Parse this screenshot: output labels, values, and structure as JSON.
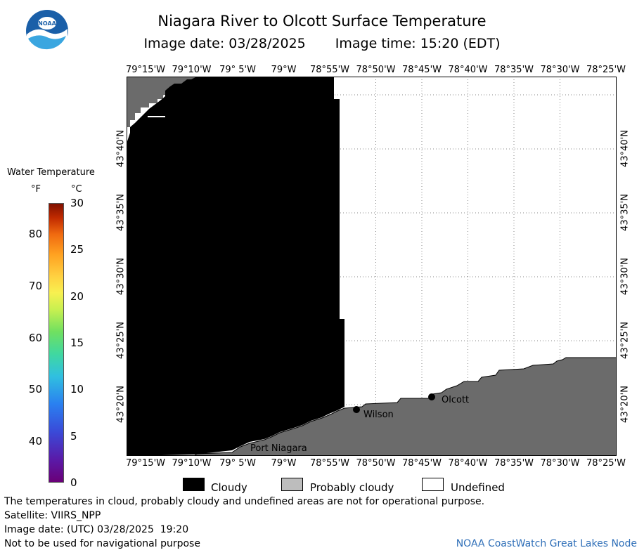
{
  "header": {
    "title": "Niagara River to Olcott Surface Temperature",
    "image_date": "Image date: 03/28/2025",
    "image_time": "Image time: 15:20 (EDT)"
  },
  "logo": {
    "text": "NOAA",
    "icon": "noaa-logo-icon"
  },
  "legend": {
    "title": "Water Temperature",
    "unit_f": "°F",
    "unit_c": "°C",
    "fahrenheit_ticks": [
      "80",
      "70",
      "60",
      "50",
      "40"
    ],
    "celsius_ticks": [
      "30",
      "25",
      "20",
      "15",
      "10",
      "5",
      "0"
    ]
  },
  "map": {
    "lon_labels": [
      "79°15'W",
      "79°10'W",
      "79° 5'W",
      "79°W",
      "78°55'W",
      "78°50'W",
      "78°45'W",
      "78°40'W",
      "78°35'W",
      "78°30'W",
      "78°25'W"
    ],
    "lat_labels": [
      "43°40'N",
      "43°35'N",
      "43°30'N",
      "43°25'N",
      "43°20'N"
    ],
    "places": [
      {
        "name": "Wilson"
      },
      {
        "name": "Olcott"
      },
      {
        "name": "Port Niagara"
      }
    ],
    "colors": {
      "cloudy": "#000000",
      "land": "#6b6b6b",
      "undefined": "#ffffff",
      "grid": "#888888"
    }
  },
  "categories": {
    "cloudy": "Cloudy",
    "probably_cloudy": "Probably cloudy",
    "undefined": "Undefined"
  },
  "footer": {
    "disclaimer": "The temperatures in cloud, probably cloudy and undefined areas are not for operational purpose.",
    "satellite": "Satellite: VIIRS_NPP",
    "utc_date": "Image date: (UTC) 03/28/2025  19:20",
    "nav_warning": "Not to be used for navigational purpose",
    "credit": "NOAA CoastWatch Great Lakes Node"
  }
}
